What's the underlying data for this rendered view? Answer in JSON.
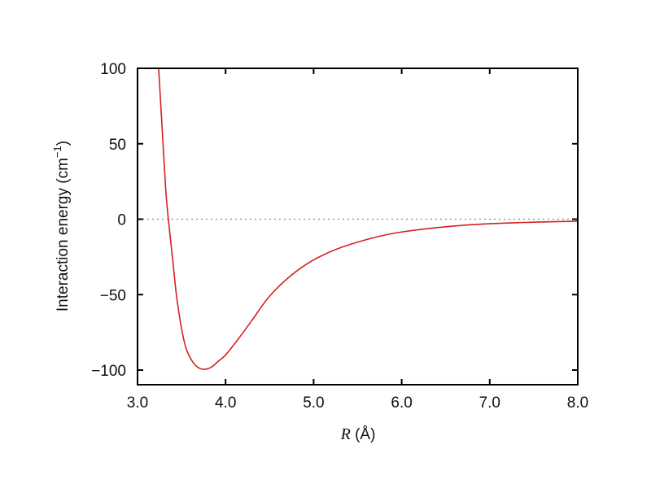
{
  "chart_data": {
    "type": "line",
    "title": "",
    "xlabel": "R (Å)",
    "xlabel_var": "R",
    "xlabel_unit": " (Å)",
    "ylabel": "Interaction energy (cm−1)",
    "ylabel_main": "Interaction energy (cm",
    "ylabel_sup": "−1",
    "ylabel_close": ")",
    "xlim": [
      3.0,
      8.0
    ],
    "ylim": [
      -110,
      100
    ],
    "x_ticks": [
      3.0,
      4.0,
      5.0,
      6.0,
      7.0,
      8.0
    ],
    "x_tick_labels": [
      "3.0",
      "4.0",
      "5.0",
      "6.0",
      "7.0",
      "8.0"
    ],
    "y_ticks": [
      100,
      50,
      0,
      -50,
      -100
    ],
    "y_tick_labels": [
      "100",
      "50",
      "0",
      "−50",
      "−100"
    ],
    "grid": false,
    "legend": null,
    "zero_line": {
      "y": 0,
      "style": "dotted",
      "color": "#888888"
    },
    "series": [
      {
        "name": "Interaction energy",
        "color": "#d42020",
        "x": [
          3.24,
          3.28,
          3.32,
          3.35,
          3.4,
          3.45,
          3.53,
          3.6,
          3.68,
          3.76,
          3.84,
          3.92,
          4.0,
          4.15,
          4.3,
          4.5,
          4.75,
          5.0,
          5.3,
          5.7,
          6.0,
          6.5,
          7.0,
          7.5,
          8.0
        ],
        "y": [
          100,
          60,
          20,
          0,
          -27,
          -54,
          -81,
          -92,
          -98,
          -99.5,
          -98,
          -94,
          -90,
          -79,
          -67,
          -51,
          -37,
          -27,
          -19,
          -12,
          -8.5,
          -5,
          -3,
          -2,
          -1.3
        ]
      }
    ],
    "annotations": {
      "minimum": {
        "R": 3.76,
        "E": -99.5
      }
    }
  }
}
